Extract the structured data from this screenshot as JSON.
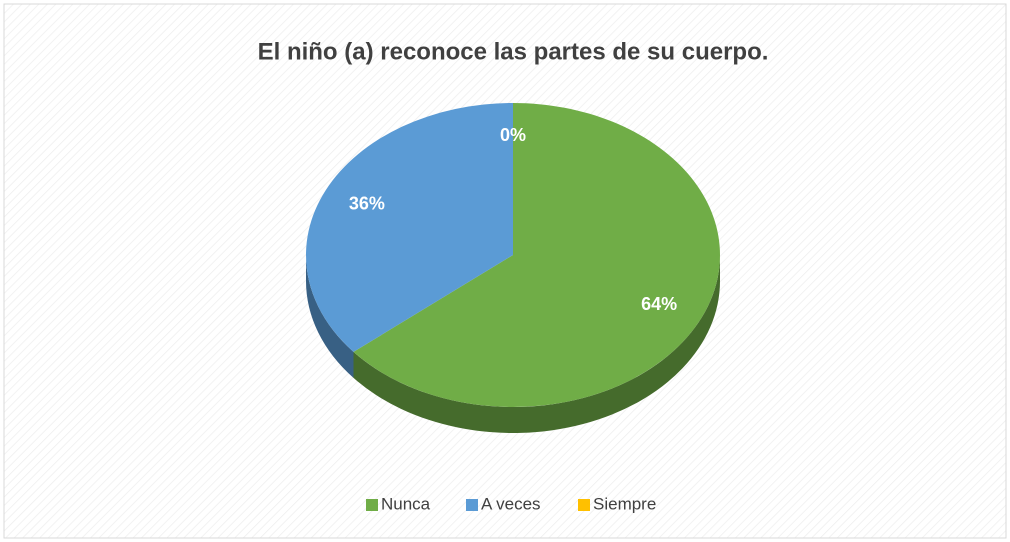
{
  "chart_data": {
    "type": "pie",
    "title": "El niño (a) reconoce las partes de su cuerpo.",
    "categories": [
      "Nunca",
      "A veces",
      "Siempre"
    ],
    "values": [
      64,
      36,
      0
    ],
    "value_labels": [
      "64%",
      "36%",
      "0%"
    ],
    "colors": [
      "#70ad47",
      "#5b9bd5",
      "#ffc000"
    ],
    "legend": "bottom"
  }
}
